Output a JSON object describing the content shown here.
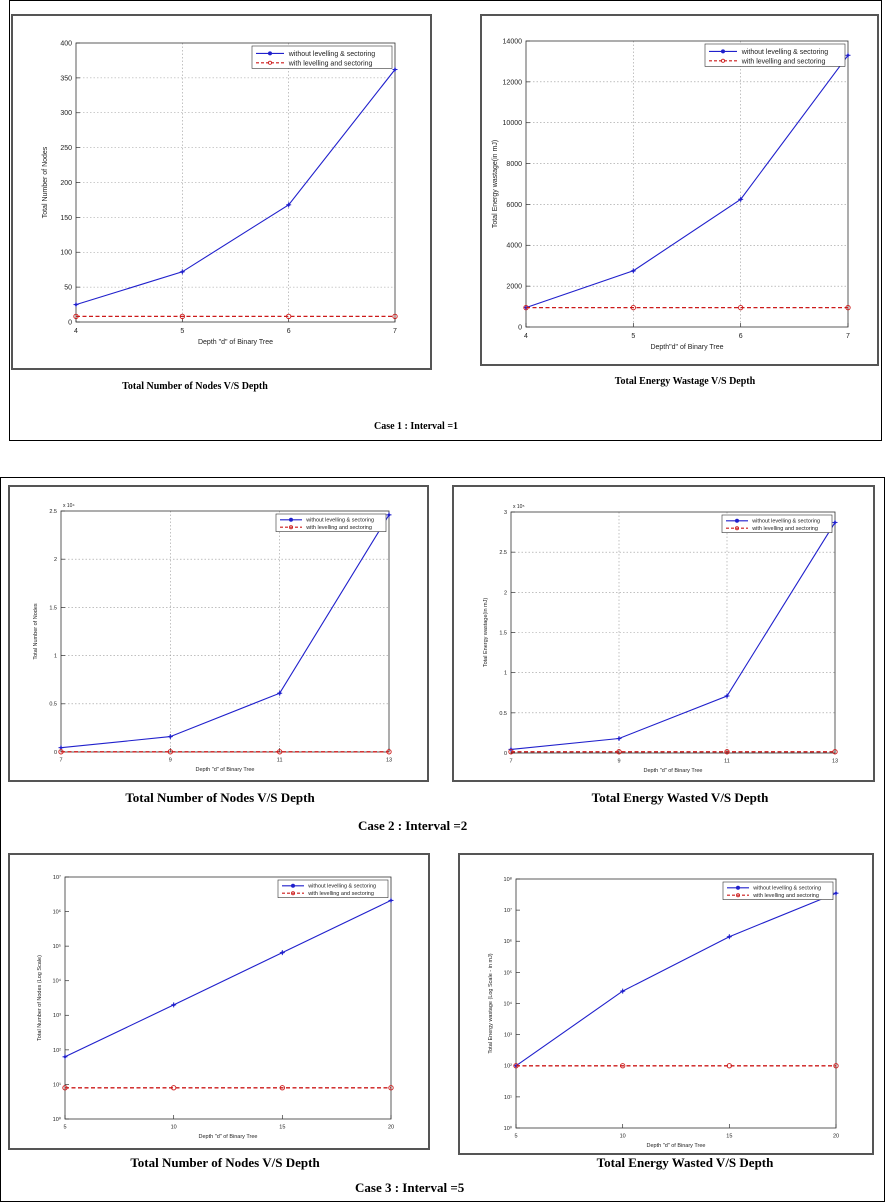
{
  "colors": {
    "series_a": "#2020cc",
    "series_b": "#cc1a1a",
    "grid": "#9a9a9a"
  },
  "cases": [
    {
      "label": "Case 1 : Interval =1"
    },
    {
      "label": "Case 2 : Interval =2"
    },
    {
      "label": "Case 3 : Interval =5"
    }
  ],
  "chart_data": [
    {
      "id": "c1a",
      "type": "line",
      "caption": "Total Number of Nodes V/S Depth",
      "xlabel": "Depth \"d\" of Binary Tree",
      "ylabel": "Total Number of Nodes",
      "xlim": [
        4,
        7
      ],
      "ylim": [
        0,
        400
      ],
      "xticks": [
        4,
        5,
        6,
        7
      ],
      "yticks": [
        0,
        50,
        100,
        150,
        200,
        250,
        300,
        350,
        400
      ],
      "yscale": "linear",
      "grid": true,
      "legend": "top-right",
      "series": [
        {
          "name": "without levelling & sectoring",
          "x": [
            4,
            5,
            6,
            7
          ],
          "y": [
            25,
            72,
            168,
            362
          ]
        },
        {
          "name": "with levelling and sectoring",
          "x": [
            4,
            5,
            6,
            7
          ],
          "y": [
            8,
            8,
            8,
            8
          ]
        }
      ]
    },
    {
      "id": "c1b",
      "type": "line",
      "caption": "Total Energy Wastage V/S Depth",
      "xlabel": "Depth\"d\" of Binary Tree",
      "ylabel": "Total Energy wastage(in mJ)",
      "xlim": [
        4,
        7
      ],
      "ylim": [
        0,
        14000
      ],
      "xticks": [
        4,
        5,
        6,
        7
      ],
      "yticks": [
        0,
        2000,
        4000,
        6000,
        8000,
        10000,
        12000,
        14000
      ],
      "yscale": "linear",
      "grid": true,
      "legend": "top-right",
      "series": [
        {
          "name": "without levelling & sectoring",
          "x": [
            4,
            5,
            6,
            7
          ],
          "y": [
            950,
            2750,
            6250,
            13300
          ]
        },
        {
          "name": "with levelling and sectoring",
          "x": [
            4,
            5,
            6,
            7
          ],
          "y": [
            950,
            950,
            950,
            950
          ]
        }
      ]
    },
    {
      "id": "c2a",
      "type": "line",
      "caption": "Total Number of Nodes V/S Depth",
      "xlabel": "Depth \"d\" of Binary Tree",
      "ylabel": "Total Number of Nodes",
      "yexp": "x 10⁴",
      "xlim": [
        7,
        13
      ],
      "ylim": [
        0,
        25000
      ],
      "xticks": [
        7,
        9,
        11,
        13
      ],
      "yticks": [
        0,
        5000,
        10000,
        15000,
        20000,
        25000
      ],
      "yticklabels": [
        "0",
        "0.5",
        "1",
        "1.5",
        "2",
        "2.5"
      ],
      "yscale": "linear",
      "grid": true,
      "legend": "top-right",
      "series": [
        {
          "name": "without levelling & sectoring",
          "x": [
            7,
            9,
            11,
            13
          ],
          "y": [
            450,
            1600,
            6100,
            24600
          ]
        },
        {
          "name": "with levelling and sectoring",
          "x": [
            7,
            9,
            11,
            13
          ],
          "y": [
            20,
            20,
            20,
            20
          ]
        }
      ]
    },
    {
      "id": "c2b",
      "type": "line",
      "caption": "Total Energy Wasted V/S Depth",
      "xlabel": "Depth \"d\" of Binary Tree",
      "ylabel": "Total Energy wastage(in mJ)",
      "yexp": "x 10⁵",
      "xlim": [
        7,
        13
      ],
      "ylim": [
        0,
        300000
      ],
      "xticks": [
        7,
        9,
        11,
        13
      ],
      "yticks": [
        0,
        50000,
        100000,
        150000,
        200000,
        250000,
        300000
      ],
      "yticklabels": [
        "0",
        "0.5",
        "1",
        "1.5",
        "2",
        "2.5",
        "3"
      ],
      "yscale": "linear",
      "grid": true,
      "legend": "top-right",
      "series": [
        {
          "name": "without levelling & sectoring",
          "x": [
            7,
            9,
            11,
            13
          ],
          "y": [
            4500,
            18000,
            71000,
            287000
          ]
        },
        {
          "name": "with levelling and sectoring",
          "x": [
            7,
            9,
            11,
            13
          ],
          "y": [
            1500,
            1500,
            1500,
            1500
          ]
        }
      ]
    },
    {
      "id": "c3a",
      "type": "line",
      "caption": "Total Number of Nodes V/S Depth",
      "xlabel": "Depth \"d\" of Binary Tree",
      "ylabel": "Total Number of Nodes (Log Scale)",
      "xlim": [
        5,
        20
      ],
      "ylim": [
        1,
        10000000
      ],
      "xticks": [
        5,
        10,
        15,
        20
      ],
      "yticks": [
        1,
        10,
        100,
        1000,
        10000,
        100000,
        1000000,
        10000000
      ],
      "yticklabels": [
        "10⁰",
        "10¹",
        "10²",
        "10³",
        "10⁴",
        "10⁵",
        "10⁶",
        "10⁷"
      ],
      "yscale": "log",
      "grid": false,
      "legend": "top-right",
      "series": [
        {
          "name": "without levelling & sectoring",
          "x": [
            5,
            10,
            15,
            20
          ],
          "y": [
            63,
            2000,
            65000,
            2100000
          ]
        },
        {
          "name": "with levelling and sectoring",
          "x": [
            5,
            10,
            15,
            20
          ],
          "y": [
            8,
            8,
            8,
            8
          ]
        }
      ]
    },
    {
      "id": "c3b",
      "type": "line",
      "caption": "Total Energy Wasted V/S Depth",
      "xlabel": "Depth \"d\" of Binary Tree",
      "ylabel": "Total Energy wastage (Log Scale - in mJ)",
      "xlim": [
        5,
        20
      ],
      "ylim": [
        1,
        100000000
      ],
      "xticks": [
        5,
        10,
        15,
        20
      ],
      "yticks": [
        1,
        10,
        100,
        1000,
        10000,
        100000,
        1000000,
        10000000,
        100000000
      ],
      "yticklabels": [
        "10⁰",
        "10¹",
        "10²",
        "10³",
        "10⁴",
        "10⁵",
        "10⁶",
        "10⁷",
        "10⁸"
      ],
      "yscale": "log",
      "grid": false,
      "legend": "top-right",
      "series": [
        {
          "name": "without levelling & sectoring",
          "x": [
            5,
            10,
            15,
            20
          ],
          "y": [
            100,
            25000,
            1400000,
            35000000
          ]
        },
        {
          "name": "with levelling and sectoring",
          "x": [
            5,
            10,
            15,
            20
          ],
          "y": [
            100,
            100,
            100,
            100
          ]
        }
      ]
    }
  ]
}
